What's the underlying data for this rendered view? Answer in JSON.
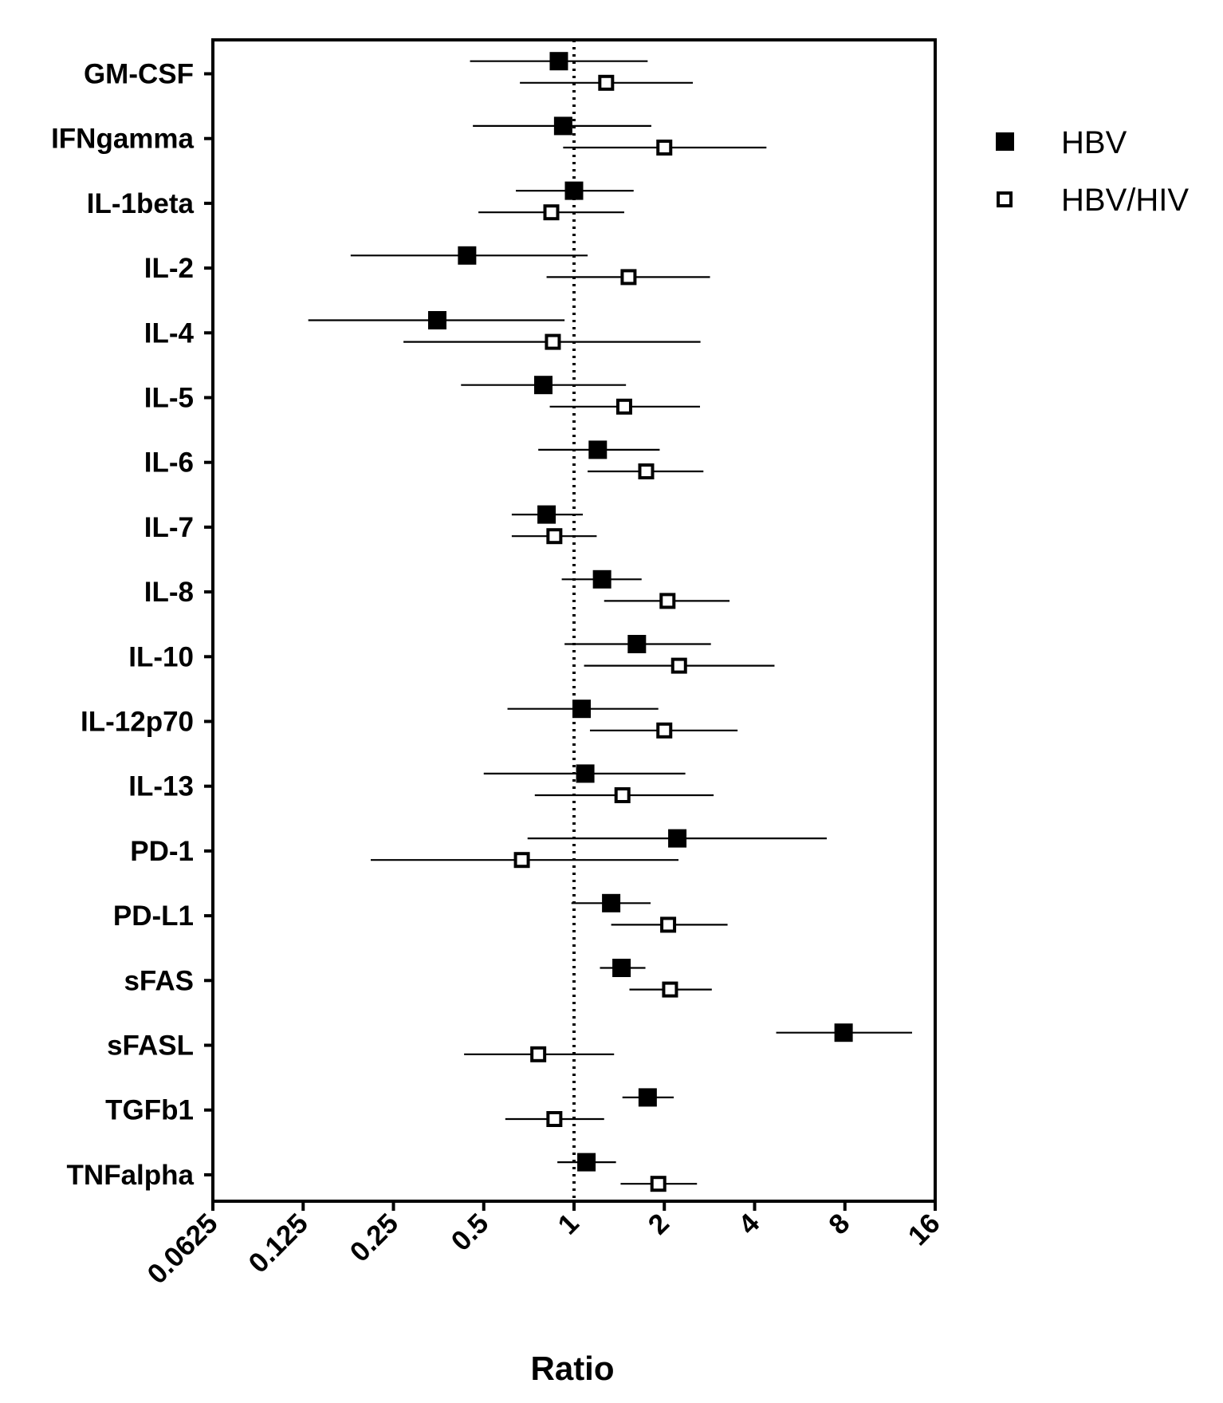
{
  "chart_data": {
    "type": "forest",
    "title": "",
    "xlabel": "Ratio",
    "ylabel": "",
    "xscale": "log2",
    "xlim": [
      0.0625,
      16
    ],
    "xticks": [
      "0.0625",
      "0.125",
      "0.25",
      "0.5",
      "1",
      "2",
      "4",
      "8",
      "16"
    ],
    "reference_line": 1,
    "legend_position": "right",
    "categories": [
      "GM-CSF",
      "IFNgamma",
      "IL-1beta",
      "IL-2",
      "IL-4",
      "IL-5",
      "IL-6",
      "IL-7",
      "IL-8",
      "IL-10",
      "IL-12p70",
      "IL-13",
      "PD-1",
      "PD-L1",
      "sFAS",
      "sFASL",
      "TGFb1",
      "TNFalpha"
    ],
    "series": [
      {
        "name": "HBV",
        "marker": "filled-square",
        "color": "#000000",
        "values": [
          0.89,
          0.92,
          1.0,
          0.44,
          0.35,
          0.79,
          1.2,
          0.81,
          1.24,
          1.62,
          1.06,
          1.09,
          2.21,
          1.33,
          1.44,
          7.92,
          1.76,
          1.1
        ],
        "lower": [
          0.45,
          0.46,
          0.64,
          0.18,
          0.13,
          0.42,
          0.76,
          0.62,
          0.91,
          0.93,
          0.6,
          0.5,
          0.7,
          0.98,
          1.22,
          4.72,
          1.45,
          0.88
        ],
        "upper": [
          1.76,
          1.81,
          1.58,
          1.11,
          0.93,
          1.49,
          1.93,
          1.07,
          1.68,
          2.86,
          1.91,
          2.35,
          6.96,
          1.8,
          1.73,
          13.4,
          2.15,
          1.38
        ]
      },
      {
        "name": "HBV/HIV",
        "marker": "open-square",
        "color": "#000000",
        "values": [
          1.28,
          2.0,
          0.84,
          1.52,
          0.85,
          1.47,
          1.74,
          0.86,
          2.05,
          2.24,
          2.0,
          1.45,
          0.67,
          2.06,
          2.09,
          0.76,
          0.86,
          1.91
        ],
        "lower": [
          0.66,
          0.92,
          0.48,
          0.81,
          0.27,
          0.83,
          1.11,
          0.62,
          1.26,
          1.08,
          1.13,
          0.74,
          0.21,
          1.33,
          1.53,
          0.43,
          0.59,
          1.43
        ],
        "upper": [
          2.49,
          4.38,
          1.47,
          2.84,
          2.64,
          2.63,
          2.7,
          1.19,
          3.3,
          4.66,
          3.51,
          2.92,
          2.23,
          3.25,
          2.88,
          1.36,
          1.26,
          2.57
        ]
      }
    ]
  }
}
